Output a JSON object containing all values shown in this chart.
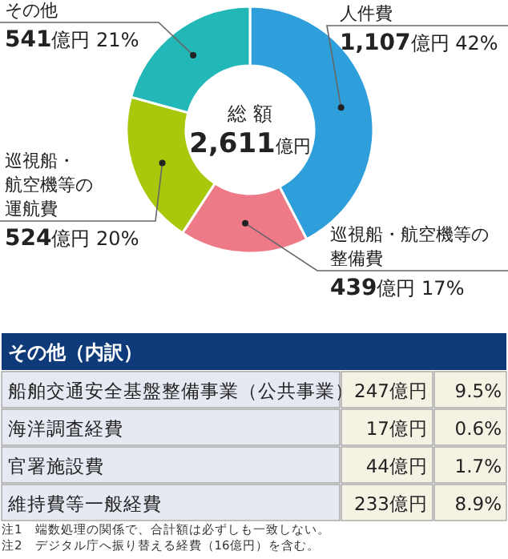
{
  "chart_data": [
    {
      "type": "donut",
      "categories": [
        "人件費",
        "巡視船・航空機等の整備費",
        "巡視船・航空機等の運航費",
        "その他"
      ],
      "values": [
        1107,
        439,
        524,
        541
      ],
      "value_labels": [
        "1,107億円 42%",
        "439億円 17%",
        "524億円 20%",
        "541億円 21%"
      ],
      "colors": [
        "#2f9fdc",
        "#ee7a88",
        "#a8c80c",
        "#22b8b8"
      ],
      "annotations": [
        "総 額",
        "2,611億円"
      ]
    },
    {
      "type": "other",
      "title": "その他（内訳）",
      "categories": [
        "船舶交通安全基盤整備事業（公共事業）",
        "海洋調査経費",
        "官署施設費",
        "維持費等一般経費"
      ],
      "series": [
        {
          "values": [
            247,
            17,
            44,
            233
          ],
          "value_labels": [
            "247億円",
            "17億円",
            "44億円",
            "233億円"
          ]
        },
        {
          "values": [
            9.5,
            0.6,
            1.7,
            8.9
          ],
          "value_labels": [
            "9.5%",
            "0.6%",
            "1.7%",
            "8.9%"
          ]
        }
      ],
      "annotations": [
        "注1　端数処理の関係で、合計額は必ずしも一致しない。",
        "注2　デジタル庁へ振り替える経費（16億円）を含む。"
      ]
    }
  ]
}
